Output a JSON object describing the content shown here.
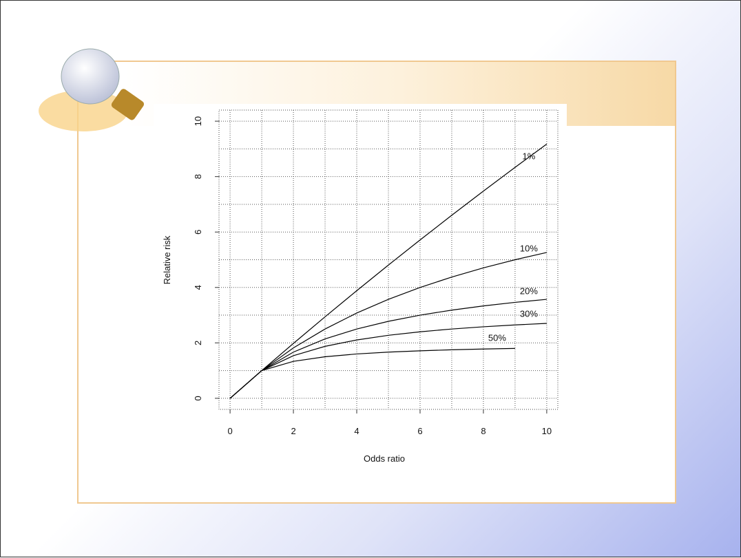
{
  "chart_data": {
    "type": "line",
    "xlabel": "Odds ratio",
    "ylabel": "Relative risk",
    "x": [
      0,
      1,
      2,
      3,
      4,
      5,
      6,
      7,
      8,
      9,
      10
    ],
    "series": [
      {
        "name": "1%",
        "color": "#000000",
        "values": [
          0,
          1,
          1.98,
          2.941,
          3.883,
          4.808,
          5.714,
          6.604,
          7.477,
          8.333,
          9.174
        ]
      },
      {
        "name": "10%",
        "color": "#000000",
        "values": [
          0,
          1,
          1.818,
          2.5,
          3.077,
          3.571,
          4.0,
          4.375,
          4.706,
          5.0,
          5.263
        ]
      },
      {
        "name": "20%",
        "color": "#000000",
        "values": [
          0,
          1,
          1.667,
          2.143,
          2.5,
          2.778,
          3.0,
          3.182,
          3.333,
          3.462,
          3.571
        ]
      },
      {
        "name": "30%",
        "color": "#000000",
        "values": [
          0,
          1,
          1.538,
          1.875,
          2.105,
          2.273,
          2.4,
          2.5,
          2.581,
          2.647,
          2.703
        ]
      },
      {
        "name": "50%",
        "color": "#000000",
        "values": [
          0,
          1,
          1.333,
          1.5,
          1.6,
          1.667,
          1.714,
          1.75,
          1.778,
          1.8,
          null
        ]
      }
    ],
    "xlim": [
      -0.35,
      10.35
    ],
    "ylim": [
      -0.4,
      10.4
    ],
    "xticks": [
      0,
      2,
      4,
      6,
      8,
      10
    ],
    "yticks": [
      0,
      2,
      4,
      6,
      8,
      10
    ],
    "xgrid": [
      0,
      1,
      2,
      3,
      4,
      5,
      6,
      7,
      8,
      9,
      10
    ],
    "ygrid": [
      0,
      1,
      2,
      3,
      4,
      5,
      6,
      7,
      8,
      9,
      10
    ],
    "grid": true
  }
}
